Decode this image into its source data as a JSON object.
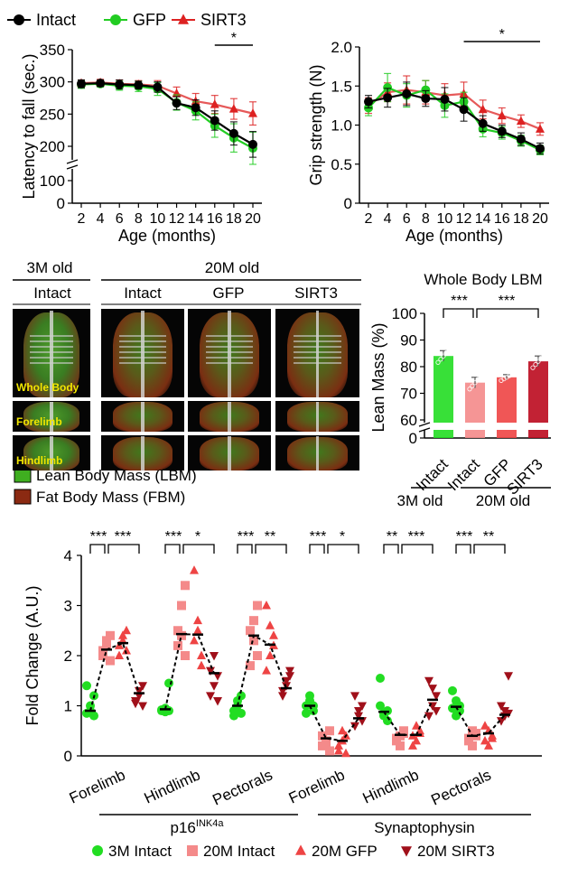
{
  "legend_top": [
    {
      "label": "Intact",
      "color": "#000000",
      "marker": "circle"
    },
    {
      "label": "GFP",
      "color": "#22cc22",
      "marker": "circle"
    },
    {
      "label": "SIRT3",
      "color": "#dd2222",
      "marker": "triangle-up"
    }
  ],
  "panel_a": {
    "chart_data": {
      "type": "line",
      "xlabel": "Age (months)",
      "ylabel": "Latency to fall (sec.)",
      "x": [
        2,
        4,
        6,
        8,
        10,
        12,
        14,
        16,
        18,
        20
      ],
      "x_ticks": [
        "2",
        "4",
        "6",
        "8",
        "10",
        "12",
        "14",
        "16",
        "18",
        "20"
      ],
      "y_ticks": [
        "0",
        "100",
        "200",
        "250",
        "300",
        "350"
      ],
      "ylim": [
        0,
        350
      ],
      "axis_break": [
        100,
        200
      ],
      "series": [
        {
          "name": "Intact",
          "color": "#000000",
          "values": [
            297,
            298,
            296,
            295,
            292,
            267,
            260,
            240,
            220,
            203
          ],
          "err": [
            6,
            5,
            7,
            6,
            8,
            10,
            12,
            15,
            18,
            20
          ]
        },
        {
          "name": "GFP",
          "color": "#22cc22",
          "values": [
            296,
            297,
            294,
            293,
            289,
            268,
            255,
            232,
            213,
            197
          ],
          "err": [
            6,
            5,
            7,
            8,
            10,
            12,
            14,
            18,
            22,
            25
          ]
        },
        {
          "name": "SIRT3",
          "color": "#dd2222",
          "values": [
            298,
            299,
            297,
            296,
            294,
            282,
            270,
            265,
            258,
            251
          ],
          "err": [
            5,
            5,
            6,
            6,
            8,
            10,
            12,
            14,
            16,
            18
          ]
        }
      ],
      "annotation": "*"
    }
  },
  "panel_b": {
    "chart_data": {
      "type": "line",
      "xlabel": "Age (months)",
      "ylabel": "Grip strength (N)",
      "x": [
        2,
        4,
        6,
        8,
        10,
        12,
        14,
        16,
        18,
        20
      ],
      "x_ticks": [
        "2",
        "4",
        "6",
        "8",
        "10",
        "12",
        "14",
        "16",
        "18",
        "20"
      ],
      "y_ticks": [
        "0",
        "0.5",
        "1.0",
        "1.5",
        "2.0"
      ],
      "ylim": [
        0,
        2.0
      ],
      "series": [
        {
          "name": "Intact",
          "color": "#000000",
          "values": [
            1.3,
            1.35,
            1.4,
            1.34,
            1.33,
            1.2,
            1.02,
            0.92,
            0.82,
            0.7
          ],
          "err": [
            0.08,
            0.12,
            0.15,
            0.1,
            0.15,
            0.15,
            0.1,
            0.08,
            0.08,
            0.07
          ]
        },
        {
          "name": "GFP",
          "color": "#22cc22",
          "values": [
            1.22,
            1.48,
            1.38,
            1.45,
            1.25,
            1.3,
            0.95,
            0.9,
            0.8,
            0.68
          ],
          "err": [
            0.1,
            0.18,
            0.15,
            0.12,
            0.15,
            0.12,
            0.1,
            0.08,
            0.07,
            0.06
          ]
        },
        {
          "name": "SIRT3",
          "color": "#dd2222",
          "values": [
            1.25,
            1.42,
            1.45,
            1.42,
            1.38,
            1.4,
            1.2,
            1.12,
            1.05,
            0.95
          ],
          "err": [
            0.1,
            0.12,
            0.18,
            0.15,
            0.15,
            0.15,
            0.12,
            0.1,
            0.08,
            0.08
          ]
        }
      ],
      "annotation": "*"
    }
  },
  "images": {
    "header_3m": "3M old",
    "header_20m": "20M old",
    "columns": [
      "Intact",
      "Intact",
      "GFP",
      "SIRT3"
    ],
    "row_labels": [
      "Whole Body",
      "Forelimb",
      "Hindlimb"
    ],
    "legend": [
      {
        "label": "Lean Body Mass (LBM)",
        "color": "#3fae20"
      },
      {
        "label": "Fat Body Mass (FBM)",
        "color": "#8b2a12"
      }
    ]
  },
  "panel_c": {
    "chart_data": {
      "type": "bar",
      "title": "Whole Body LBM",
      "ylabel": "Lean Mass (%)",
      "categories": [
        "Intact",
        "Intact",
        "GFP",
        "SIRT3"
      ],
      "group_labels": [
        "3M old",
        "20M old"
      ],
      "values": [
        84,
        74,
        76,
        82
      ],
      "err": [
        2,
        2,
        1,
        2
      ],
      "colors": [
        "#22dd22",
        "#f48a8a",
        "#ee4444",
        "#bb0a1e"
      ],
      "y_ticks": [
        "0",
        "60",
        "70",
        "80",
        "90",
        "100"
      ],
      "ylim": [
        0,
        100
      ],
      "axis_break": [
        0,
        60
      ],
      "significance": [
        "***",
        "***"
      ]
    }
  },
  "panel_d": {
    "chart_data": {
      "type": "scatter",
      "ylabel": "Fold Change (A.U.)",
      "y_ticks": [
        "0",
        "1",
        "2",
        "3",
        "4"
      ],
      "ylim": [
        0,
        4
      ],
      "categories": [
        "Forelimb",
        "Hindlimb",
        "Pectorals",
        "Forelimb",
        "Hindlimb",
        "Pectorals"
      ],
      "gene_groups": [
        {
          "label": "p16",
          "superscript": "INK4a"
        },
        {
          "label": "Synaptophysin",
          "superscript": ""
        }
      ],
      "series": [
        {
          "name": "3M Intact",
          "color": "#22dd22",
          "marker": "circle"
        },
        {
          "name": "20M Intact",
          "color": "#f48a8a",
          "marker": "square"
        },
        {
          "name": "20M GFP",
          "color": "#ee4444",
          "marker": "triangle-up"
        },
        {
          "name": "20M SIRT3",
          "color": "#a0101a",
          "marker": "triangle-down"
        }
      ],
      "means": [
        [
          0.9,
          2.12,
          2.25,
          1.25
        ],
        [
          0.93,
          2.43,
          2.42,
          1.65
        ],
        [
          1.0,
          2.4,
          2.22,
          1.35
        ],
        [
          1.0,
          0.35,
          0.3,
          0.75
        ],
        [
          0.88,
          0.42,
          0.42,
          1.12
        ],
        [
          0.98,
          0.4,
          0.45,
          0.82
        ]
      ],
      "points": [
        [
          [
            0.85,
            1.0,
            1.2,
            1.4,
            0.9,
            0.8
          ],
          [
            2.0,
            2.2,
            2.4,
            2.1,
            2.3,
            1.9
          ],
          [
            2.0,
            2.3,
            2.5,
            2.2,
            2.4,
            2.1
          ],
          [
            1.05,
            1.2,
            1.4,
            1.1,
            1.3,
            1.0
          ]
        ],
        [
          [
            0.9,
            0.95,
            1.45,
            0.92,
            0.88,
            0.9
          ],
          [
            2.5,
            3.0,
            3.4,
            2.2,
            2.4,
            2.0
          ],
          [
            3.7,
            2.7,
            1.8,
            2.3,
            2.5,
            2.0
          ],
          [
            1.2,
            1.4,
            1.6,
            1.7,
            2.0,
            1.1
          ]
        ],
        [
          [
            0.8,
            1.0,
            1.2,
            0.9,
            1.1,
            0.85
          ],
          [
            2.5,
            2.7,
            2.0,
            1.8,
            2.3,
            3.0
          ],
          [
            3.0,
            2.0,
            2.4,
            1.7,
            2.6,
            2.2
          ],
          [
            1.2,
            1.4,
            1.6,
            1.3,
            1.5,
            1.7
          ]
        ],
        [
          [
            1.0,
            1.2,
            0.9,
            0.85,
            1.1,
            1.0
          ],
          [
            0.2,
            0.3,
            0.5,
            0.4,
            0.25,
            0.1
          ],
          [
            0.1,
            0.3,
            0.4,
            0.2,
            0.5,
            0.05
          ],
          [
            0.6,
            0.8,
            1.0,
            1.2,
            0.9,
            0.7
          ]
        ],
        [
          [
            1.55,
            0.8,
            0.9,
            1.0,
            0.85,
            0.7
          ],
          [
            0.3,
            0.4,
            0.5,
            0.35,
            0.2,
            0.45
          ],
          [
            0.2,
            0.3,
            0.5,
            0.4,
            0.6,
            0.45
          ],
          [
            0.8,
            1.0,
            1.2,
            1.5,
            1.35,
            0.9
          ]
        ],
        [
          [
            1.3,
            1.1,
            0.9,
            0.95,
            0.8,
            1.0
          ],
          [
            0.3,
            0.5,
            0.4,
            0.35,
            0.2,
            0.45
          ],
          [
            0.3,
            0.5,
            0.35,
            0.6,
            0.2,
            0.4
          ],
          [
            0.7,
            0.9,
            1.6,
            1.0,
            0.8,
            0.85
          ]
        ]
      ],
      "significance": [
        [
          "***",
          "***"
        ],
        [
          "***",
          "*"
        ],
        [
          "***",
          "**"
        ],
        [
          "***",
          "*"
        ],
        [
          "**",
          "***"
        ],
        [
          "***",
          "**"
        ]
      ]
    }
  }
}
